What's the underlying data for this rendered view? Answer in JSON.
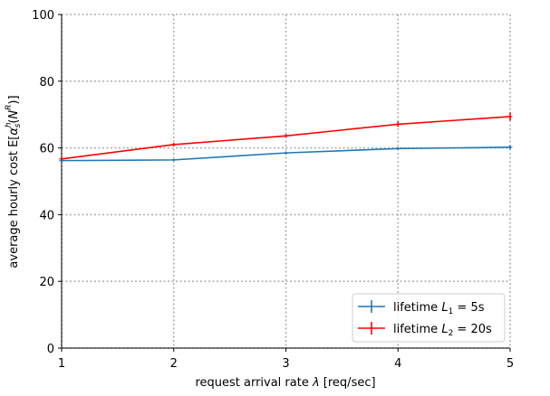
{
  "chart_data": {
    "type": "line",
    "title": "",
    "xlabel": "request arrival rate λ [req/sec]",
    "ylabel": "average hourly cost E[αˢₕ(Nᴿ)]",
    "xlim": [
      1,
      5
    ],
    "ylim": [
      0,
      100
    ],
    "xticks": [
      1,
      2,
      3,
      4,
      5
    ],
    "yticks": [
      0,
      20,
      40,
      60,
      80,
      100
    ],
    "grid": true,
    "legend_position": "lower-right",
    "x": [
      1,
      2,
      3,
      4,
      5
    ],
    "series": [
      {
        "name": "lifetime L₁ = 5s",
        "legend_prefix": "lifetime ",
        "legend_var": "L",
        "legend_sub": "1",
        "legend_suffix": " = 5s",
        "color": "#1f77b4",
        "values": [
          56.2,
          56.4,
          58.5,
          59.8,
          60.2
        ],
        "errors": [
          0.3,
          0.3,
          0.4,
          0.4,
          0.6
        ]
      },
      {
        "name": "lifetime L₂ = 20s",
        "legend_prefix": "lifetime ",
        "legend_var": "L",
        "legend_sub": "2",
        "legend_suffix": " = 20s",
        "color": "#ff0000",
        "values": [
          56.7,
          61.0,
          63.6,
          67.1,
          69.4
        ],
        "errors": [
          0.4,
          0.5,
          0.5,
          0.8,
          1.2
        ]
      }
    ]
  }
}
